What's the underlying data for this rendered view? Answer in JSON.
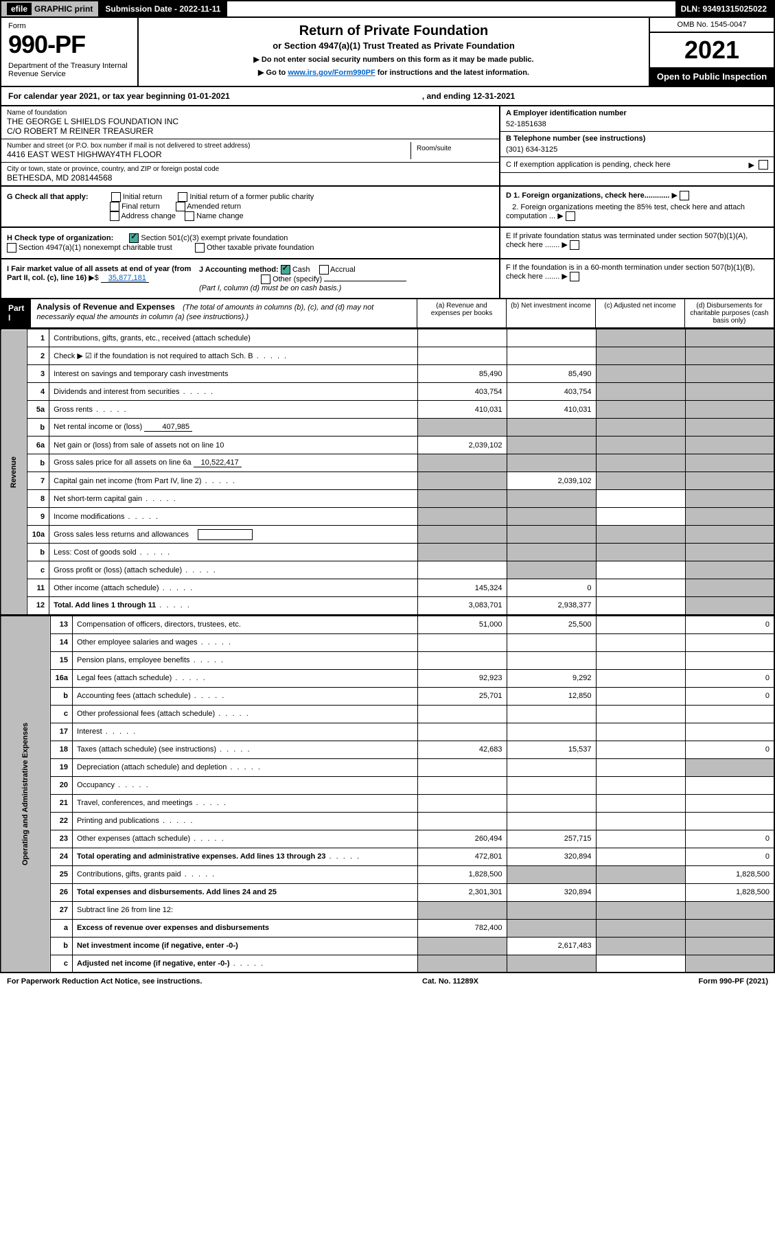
{
  "topbar": {
    "efile_prefix": "efile",
    "efile_rest": "GRAPHIC print",
    "submission": "Submission Date - 2022-11-11",
    "dln": "DLN: 93491315025022"
  },
  "header": {
    "form_label": "Form",
    "form_number": "990-PF",
    "dept": "Department of the Treasury\nInternal Revenue Service",
    "title": "Return of Private Foundation",
    "subtitle": "or Section 4947(a)(1) Trust Treated as Private Foundation",
    "note1": "▶ Do not enter social security numbers on this form as it may be made public.",
    "note2_prefix": "▶ Go to ",
    "note2_link": "www.irs.gov/Form990PF",
    "note2_suffix": " for instructions and the latest information.",
    "omb": "OMB No. 1545-0047",
    "year": "2021",
    "open": "Open to Public Inspection"
  },
  "cal": {
    "text1": "For calendar year 2021, or tax year beginning 01-01-2021",
    "text2": ", and ending 12-31-2021"
  },
  "info": {
    "name_label": "Name of foundation",
    "name1": "THE GEORGE L SHIELDS FOUNDATION INC",
    "name2": "C/O ROBERT M REINER TREASURER",
    "addr_label": "Number and street (or P.O. box number if mail is not delivered to street address)",
    "room_label": "Room/suite",
    "addr": "4416 EAST WEST HIGHWAY4TH FLOOR",
    "city_label": "City or town, state or province, country, and ZIP or foreign postal code",
    "city": "BETHESDA, MD  208144568",
    "ein_label": "A Employer identification number",
    "ein": "52-1851638",
    "tel_label": "B Telephone number (see instructions)",
    "tel": "(301) 634-3125",
    "c_label": "C If exemption application is pending, check here",
    "d1": "D 1. Foreign organizations, check here............",
    "d2": "2. Foreign organizations meeting the 85% test, check here and attach computation ...",
    "e": "E  If private foundation status was terminated under section 507(b)(1)(A), check here .......",
    "f": "F  If the foundation is in a 60-month termination under section 507(b)(1)(B), check here .......",
    "g_label": "G Check all that apply:",
    "g_opts": [
      "Initial return",
      "Initial return of a former public charity",
      "Final return",
      "Amended return",
      "Address change",
      "Name change"
    ],
    "h_label": "H Check type of organization:",
    "h1": "Section 501(c)(3) exempt private foundation",
    "h2": "Section 4947(a)(1) nonexempt charitable trust",
    "h3": "Other taxable private foundation",
    "i_label": "I Fair market value of all assets at end of year (from Part II, col. (c), line 16)",
    "i_val": "35,877,181",
    "j_label": "J Accounting method:",
    "j1": "Cash",
    "j2": "Accrual",
    "j3": "Other (specify)",
    "j_note": "(Part I, column (d) must be on cash basis.)"
  },
  "part": {
    "label": "Part I",
    "title": "Analysis of Revenue and Expenses",
    "desc": "(The total of amounts in columns (b), (c), and (d) may not necessarily equal the amounts in column (a) (see instructions).)",
    "cols": [
      "(a)  Revenue and expenses per books",
      "(b)  Net investment income",
      "(c)  Adjusted net income",
      "(d)  Disbursements for charitable purposes (cash basis only)"
    ]
  },
  "sections": {
    "revenue": "Revenue",
    "expenses": "Operating and Administrative Expenses"
  },
  "rows": [
    {
      "n": "1",
      "d": "Contributions, gifts, grants, etc., received (attach schedule)",
      "a": "",
      "b": "",
      "c": "",
      "dd": "",
      "shade_cd": true
    },
    {
      "n": "2",
      "d": "Check ▶ ☑ if the foundation is not required to attach Sch. B",
      "dots": true,
      "a": "",
      "b": "",
      "c": "",
      "dd": "",
      "shade_cd": true
    },
    {
      "n": "3",
      "d": "Interest on savings and temporary cash investments",
      "a": "85,490",
      "b": "85,490",
      "c": "",
      "dd": "",
      "shade_cd": true
    },
    {
      "n": "4",
      "d": "Dividends and interest from securities",
      "dots": true,
      "a": "403,754",
      "b": "403,754",
      "c": "",
      "dd": "",
      "shade_cd": true
    },
    {
      "n": "5a",
      "d": "Gross rents",
      "dots": true,
      "a": "410,031",
      "b": "410,031",
      "c": "",
      "dd": "",
      "shade_cd": true
    },
    {
      "n": "b",
      "d": "Net rental income or (loss)",
      "inline": "407,985",
      "a": "",
      "b": "",
      "c": "",
      "dd": "",
      "shade_all": true
    },
    {
      "n": "6a",
      "d": "Net gain or (loss) from sale of assets not on line 10",
      "a": "2,039,102",
      "b": "",
      "c": "",
      "dd": "",
      "shade_bcd": true
    },
    {
      "n": "b",
      "d": "Gross sales price for all assets on line 6a",
      "inline": "10,522,417",
      "a": "",
      "b": "",
      "c": "",
      "dd": "",
      "shade_all": true
    },
    {
      "n": "7",
      "d": "Capital gain net income (from Part IV, line 2)",
      "dots": true,
      "a": "",
      "b": "2,039,102",
      "c": "",
      "dd": "",
      "shade_acd": true
    },
    {
      "n": "8",
      "d": "Net short-term capital gain",
      "dots": true,
      "a": "",
      "b": "",
      "c": "",
      "dd": "",
      "shade_abd": true
    },
    {
      "n": "9",
      "d": "Income modifications",
      "dots": true,
      "a": "",
      "b": "",
      "c": "",
      "dd": "",
      "shade_abd": true
    },
    {
      "n": "10a",
      "d": "Gross sales less returns and allowances",
      "box": true,
      "a": "",
      "b": "",
      "c": "",
      "dd": "",
      "shade_all": true
    },
    {
      "n": "b",
      "d": "Less: Cost of goods sold",
      "dots": true,
      "box": true,
      "a": "",
      "b": "",
      "c": "",
      "dd": "",
      "shade_all": true
    },
    {
      "n": "c",
      "d": "Gross profit or (loss) (attach schedule)",
      "dots": true,
      "a": "",
      "b": "",
      "c": "",
      "dd": "",
      "shade_bd": true
    },
    {
      "n": "11",
      "d": "Other income (attach schedule)",
      "dots": true,
      "a": "145,324",
      "b": "0",
      "c": "",
      "dd": "",
      "shade_d": true
    },
    {
      "n": "12",
      "d": "Total. Add lines 1 through 11",
      "dots": true,
      "bold": true,
      "a": "3,083,701",
      "b": "2,938,377",
      "c": "",
      "dd": "",
      "shade_d": true
    }
  ],
  "exp_rows": [
    {
      "n": "13",
      "d": "Compensation of officers, directors, trustees, etc.",
      "a": "51,000",
      "b": "25,500",
      "c": "",
      "dd": "0"
    },
    {
      "n": "14",
      "d": "Other employee salaries and wages",
      "dots": true,
      "a": "",
      "b": "",
      "c": "",
      "dd": ""
    },
    {
      "n": "15",
      "d": "Pension plans, employee benefits",
      "dots": true,
      "a": "",
      "b": "",
      "c": "",
      "dd": ""
    },
    {
      "n": "16a",
      "d": "Legal fees (attach schedule)",
      "dots": true,
      "a": "92,923",
      "b": "9,292",
      "c": "",
      "dd": "0"
    },
    {
      "n": "b",
      "d": "Accounting fees (attach schedule)",
      "dots": true,
      "a": "25,701",
      "b": "12,850",
      "c": "",
      "dd": "0"
    },
    {
      "n": "c",
      "d": "Other professional fees (attach schedule)",
      "dots": true,
      "a": "",
      "b": "",
      "c": "",
      "dd": ""
    },
    {
      "n": "17",
      "d": "Interest",
      "dots": true,
      "a": "",
      "b": "",
      "c": "",
      "dd": ""
    },
    {
      "n": "18",
      "d": "Taxes (attach schedule) (see instructions)",
      "dots": true,
      "a": "42,683",
      "b": "15,537",
      "c": "",
      "dd": "0"
    },
    {
      "n": "19",
      "d": "Depreciation (attach schedule) and depletion",
      "dots": true,
      "a": "",
      "b": "",
      "c": "",
      "dd": "",
      "shade_d": true
    },
    {
      "n": "20",
      "d": "Occupancy",
      "dots": true,
      "a": "",
      "b": "",
      "c": "",
      "dd": ""
    },
    {
      "n": "21",
      "d": "Travel, conferences, and meetings",
      "dots": true,
      "a": "",
      "b": "",
      "c": "",
      "dd": ""
    },
    {
      "n": "22",
      "d": "Printing and publications",
      "dots": true,
      "a": "",
      "b": "",
      "c": "",
      "dd": ""
    },
    {
      "n": "23",
      "d": "Other expenses (attach schedule)",
      "dots": true,
      "a": "260,494",
      "b": "257,715",
      "c": "",
      "dd": "0"
    },
    {
      "n": "24",
      "d": "Total operating and administrative expenses. Add lines 13 through 23",
      "dots": true,
      "bold": true,
      "a": "472,801",
      "b": "320,894",
      "c": "",
      "dd": "0"
    },
    {
      "n": "25",
      "d": "Contributions, gifts, grants paid",
      "dots": true,
      "a": "1,828,500",
      "b": "",
      "c": "",
      "dd": "1,828,500",
      "shade_bc": true
    },
    {
      "n": "26",
      "d": "Total expenses and disbursements. Add lines 24 and 25",
      "bold": true,
      "a": "2,301,301",
      "b": "320,894",
      "c": "",
      "dd": "1,828,500"
    },
    {
      "n": "27",
      "d": "Subtract line 26 from line 12:",
      "a": "",
      "b": "",
      "c": "",
      "dd": "",
      "shade_all": true
    },
    {
      "n": "a",
      "d": "Excess of revenue over expenses and disbursements",
      "bold": true,
      "a": "782,400",
      "b": "",
      "c": "",
      "dd": "",
      "shade_bcd": true
    },
    {
      "n": "b",
      "d": "Net investment income (if negative, enter -0-)",
      "bold": true,
      "a": "",
      "b": "2,617,483",
      "c": "",
      "dd": "",
      "shade_acd": true
    },
    {
      "n": "c",
      "d": "Adjusted net income (if negative, enter -0-)",
      "dots": true,
      "bold": true,
      "a": "",
      "b": "",
      "c": "",
      "dd": "",
      "shade_abd": true
    }
  ],
  "footer": {
    "left": "For Paperwork Reduction Act Notice, see instructions.",
    "center": "Cat. No. 11289X",
    "right": "Form 990-PF (2021)"
  }
}
